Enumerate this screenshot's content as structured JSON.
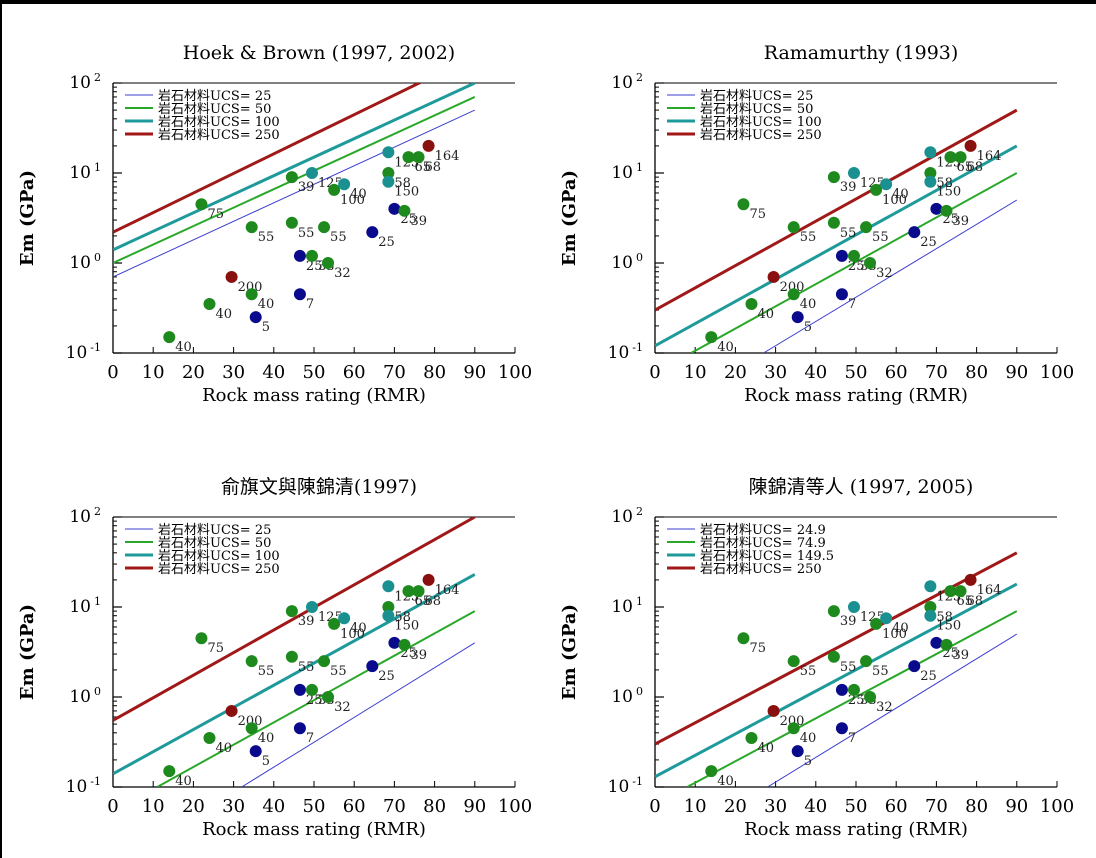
{
  "colors": {
    "ucs25": "#3f3fd0",
    "ucs50": "#2aa82a",
    "ucs100": "#1f9a9a",
    "ucs250": "#a01818",
    "pt_blue": "#0a0a8c",
    "pt_green": "#1e8a1e",
    "pt_teal": "#1a9090",
    "pt_red": "#8a1010"
  },
  "chart_data": [
    {
      "type": "scatter",
      "title": "Hoek & Brown (1997, 2002)",
      "xlabel": "Rock mass rating (RMR)",
      "ylabel": "Em (GPa)",
      "xlim": [
        0,
        100
      ],
      "ylim": [
        0.1,
        100
      ],
      "yscale": "log",
      "xticks": [
        "0",
        "10",
        "20",
        "30",
        "40",
        "50",
        "60",
        "70",
        "80",
        "90",
        "100"
      ],
      "yticks": [
        {
          "base": "10",
          "exp": "-1"
        },
        {
          "base": "10",
          "exp": "0"
        },
        {
          "base": "10",
          "exp": "1"
        },
        {
          "base": "10",
          "exp": "2"
        }
      ],
      "legend_position": "top-left",
      "series": [
        {
          "name": "岩石材料UCS= 25",
          "color": "ucs25",
          "width": 1,
          "line": [
            [
              0,
              0.7
            ],
            [
              90,
              50
            ]
          ]
        },
        {
          "name": "岩石材料UCS= 50",
          "color": "ucs50",
          "width": 2,
          "line": [
            [
              0,
              1.0
            ],
            [
              90,
              70
            ]
          ]
        },
        {
          "name": "岩石材料UCS= 100",
          "color": "ucs100",
          "width": 3,
          "line": [
            [
              0,
              1.4
            ],
            [
              90,
              100
            ]
          ]
        },
        {
          "name": "岩石材料UCS= 250",
          "color": "ucs250",
          "width": 3,
          "line": [
            [
              0,
              2.2
            ],
            [
              90,
              200
            ]
          ]
        }
      ],
      "points": [
        {
          "x": 14,
          "y": 0.15,
          "label": "40",
          "c": "pt_green"
        },
        {
          "x": 22,
          "y": 4.5,
          "label": "75",
          "c": "pt_green"
        },
        {
          "x": 24,
          "y": 0.35,
          "label": "40",
          "c": "pt_green"
        },
        {
          "x": 29.5,
          "y": 0.7,
          "label": "200",
          "c": "pt_red"
        },
        {
          "x": 34.5,
          "y": 2.5,
          "label": "55",
          "c": "pt_green"
        },
        {
          "x": 34.5,
          "y": 0.45,
          "label": "40",
          "c": "pt_green"
        },
        {
          "x": 35.5,
          "y": 0.25,
          "label": "5",
          "c": "pt_blue"
        },
        {
          "x": 44.5,
          "y": 9,
          "label": "39",
          "c": "pt_green"
        },
        {
          "x": 44.5,
          "y": 2.8,
          "label": "55",
          "c": "pt_green"
        },
        {
          "x": 46.5,
          "y": 1.2,
          "label": "25",
          "c": "pt_blue"
        },
        {
          "x": 46.5,
          "y": 0.45,
          "label": "7",
          "c": "pt_blue"
        },
        {
          "x": 49.5,
          "y": 10,
          "label": "125",
          "c": "pt_teal"
        },
        {
          "x": 49.5,
          "y": 1.2,
          "label": "33",
          "c": "pt_green"
        },
        {
          "x": 52.5,
          "y": 2.5,
          "label": "55",
          "c": "pt_green"
        },
        {
          "x": 53.5,
          "y": 1.0,
          "label": "32",
          "c": "pt_green"
        },
        {
          "x": 55,
          "y": 6.5,
          "label": "100",
          "c": "pt_green"
        },
        {
          "x": 57.5,
          "y": 7.5,
          "label": "40",
          "c": "pt_teal"
        },
        {
          "x": 64.5,
          "y": 2.2,
          "label": "25",
          "c": "pt_blue"
        },
        {
          "x": 68.5,
          "y": 17,
          "label": "125",
          "c": "pt_teal"
        },
        {
          "x": 68.5,
          "y": 10,
          "label": "58",
          "c": "pt_green"
        },
        {
          "x": 68.5,
          "y": 8,
          "label": "150",
          "c": "pt_teal"
        },
        {
          "x": 70,
          "y": 4,
          "label": "25",
          "c": "pt_blue"
        },
        {
          "x": 72.5,
          "y": 3.8,
          "label": "39",
          "c": "pt_green"
        },
        {
          "x": 73.5,
          "y": 15,
          "label": "65",
          "c": "pt_green"
        },
        {
          "x": 76,
          "y": 15,
          "label": "68",
          "c": "pt_green"
        },
        {
          "x": 78.5,
          "y": 20,
          "label": "164",
          "c": "pt_red"
        }
      ]
    },
    {
      "type": "scatter",
      "title": "Ramamurthy (1993)",
      "xlabel": "Rock mass rating (RMR)",
      "ylabel": "Em (GPa)",
      "xlim": [
        0,
        100
      ],
      "ylim": [
        0.1,
        100
      ],
      "yscale": "log",
      "xticks": [
        "0",
        "10",
        "20",
        "30",
        "40",
        "50",
        "60",
        "70",
        "80",
        "90",
        "100"
      ],
      "yticks": [
        {
          "base": "10",
          "exp": "-1"
        },
        {
          "base": "10",
          "exp": "0"
        },
        {
          "base": "10",
          "exp": "1"
        },
        {
          "base": "10",
          "exp": "2"
        }
      ],
      "legend_position": "top-left",
      "series": [
        {
          "name": "岩石材料UCS= 25",
          "color": "ucs25",
          "width": 1,
          "line": [
            [
              27,
              0.1
            ],
            [
              90,
              5
            ]
          ]
        },
        {
          "name": "岩石材料UCS= 50",
          "color": "ucs50",
          "width": 2,
          "line": [
            [
              9,
              0.1
            ],
            [
              90,
              10
            ]
          ]
        },
        {
          "name": "岩石材料UCS= 100",
          "color": "ucs100",
          "width": 3,
          "line": [
            [
              0,
              0.12
            ],
            [
              90,
              20
            ]
          ]
        },
        {
          "name": "岩石材料UCS= 250",
          "color": "ucs250",
          "width": 3,
          "line": [
            [
              0,
              0.3
            ],
            [
              90,
              50
            ]
          ]
        }
      ],
      "points": [
        {
          "x": 14,
          "y": 0.15,
          "label": "40",
          "c": "pt_green"
        },
        {
          "x": 22,
          "y": 4.5,
          "label": "75",
          "c": "pt_green"
        },
        {
          "x": 24,
          "y": 0.35,
          "label": "40",
          "c": "pt_green"
        },
        {
          "x": 29.5,
          "y": 0.7,
          "label": "200",
          "c": "pt_red"
        },
        {
          "x": 34.5,
          "y": 2.5,
          "label": "55",
          "c": "pt_green"
        },
        {
          "x": 34.5,
          "y": 0.45,
          "label": "40",
          "c": "pt_green"
        },
        {
          "x": 35.5,
          "y": 0.25,
          "label": "5",
          "c": "pt_blue"
        },
        {
          "x": 44.5,
          "y": 9,
          "label": "39",
          "c": "pt_green"
        },
        {
          "x": 44.5,
          "y": 2.8,
          "label": "55",
          "c": "pt_green"
        },
        {
          "x": 46.5,
          "y": 1.2,
          "label": "25",
          "c": "pt_blue"
        },
        {
          "x": 46.5,
          "y": 0.45,
          "label": "7",
          "c": "pt_blue"
        },
        {
          "x": 49.5,
          "y": 10,
          "label": "125",
          "c": "pt_teal"
        },
        {
          "x": 49.5,
          "y": 1.2,
          "label": "33",
          "c": "pt_green"
        },
        {
          "x": 52.5,
          "y": 2.5,
          "label": "55",
          "c": "pt_green"
        },
        {
          "x": 53.5,
          "y": 1.0,
          "label": "32",
          "c": "pt_green"
        },
        {
          "x": 55,
          "y": 6.5,
          "label": "100",
          "c": "pt_green"
        },
        {
          "x": 57.5,
          "y": 7.5,
          "label": "40",
          "c": "pt_teal"
        },
        {
          "x": 64.5,
          "y": 2.2,
          "label": "25",
          "c": "pt_blue"
        },
        {
          "x": 68.5,
          "y": 17,
          "label": "125",
          "c": "pt_teal"
        },
        {
          "x": 68.5,
          "y": 10,
          "label": "58",
          "c": "pt_green"
        },
        {
          "x": 68.5,
          "y": 8,
          "label": "150",
          "c": "pt_teal"
        },
        {
          "x": 70,
          "y": 4,
          "label": "25",
          "c": "pt_blue"
        },
        {
          "x": 72.5,
          "y": 3.8,
          "label": "39",
          "c": "pt_green"
        },
        {
          "x": 73.5,
          "y": 15,
          "label": "65",
          "c": "pt_green"
        },
        {
          "x": 76,
          "y": 15,
          "label": "68",
          "c": "pt_green"
        },
        {
          "x": 78.5,
          "y": 20,
          "label": "164",
          "c": "pt_red"
        }
      ]
    },
    {
      "type": "scatter",
      "title": "俞旗文與陳錦清(1997)",
      "xlabel": "Rock mass rating (RMR)",
      "ylabel": "Em (GPa)",
      "xlim": [
        0,
        100
      ],
      "ylim": [
        0.1,
        100
      ],
      "yscale": "log",
      "xticks": [
        "0",
        "10",
        "20",
        "30",
        "40",
        "50",
        "60",
        "70",
        "80",
        "90",
        "100"
      ],
      "yticks": [
        {
          "base": "10",
          "exp": "-1"
        },
        {
          "base": "10",
          "exp": "0"
        },
        {
          "base": "10",
          "exp": "1"
        },
        {
          "base": "10",
          "exp": "2"
        }
      ],
      "legend_position": "top-left",
      "series": [
        {
          "name": "岩石材料UCS= 25",
          "color": "ucs25",
          "width": 1,
          "line": [
            [
              32,
              0.1
            ],
            [
              90,
              4
            ]
          ]
        },
        {
          "name": "岩石材料UCS= 50",
          "color": "ucs50",
          "width": 2,
          "line": [
            [
              11,
              0.1
            ],
            [
              90,
              9
            ]
          ]
        },
        {
          "name": "岩石材料UCS= 100",
          "color": "ucs100",
          "width": 3,
          "line": [
            [
              0,
              0.14
            ],
            [
              90,
              23
            ]
          ]
        },
        {
          "name": "岩石材料UCS= 250",
          "color": "ucs250",
          "width": 3,
          "line": [
            [
              0,
              0.55
            ],
            [
              90,
              100
            ]
          ]
        }
      ],
      "points": [
        {
          "x": 14,
          "y": 0.15,
          "label": "40",
          "c": "pt_green"
        },
        {
          "x": 22,
          "y": 4.5,
          "label": "75",
          "c": "pt_green"
        },
        {
          "x": 24,
          "y": 0.35,
          "label": "40",
          "c": "pt_green"
        },
        {
          "x": 29.5,
          "y": 0.7,
          "label": "200",
          "c": "pt_red"
        },
        {
          "x": 34.5,
          "y": 2.5,
          "label": "55",
          "c": "pt_green"
        },
        {
          "x": 34.5,
          "y": 0.45,
          "label": "40",
          "c": "pt_green"
        },
        {
          "x": 35.5,
          "y": 0.25,
          "label": "5",
          "c": "pt_blue"
        },
        {
          "x": 44.5,
          "y": 9,
          "label": "39",
          "c": "pt_green"
        },
        {
          "x": 44.5,
          "y": 2.8,
          "label": "55",
          "c": "pt_green"
        },
        {
          "x": 46.5,
          "y": 1.2,
          "label": "25",
          "c": "pt_blue"
        },
        {
          "x": 46.5,
          "y": 0.45,
          "label": "7",
          "c": "pt_blue"
        },
        {
          "x": 49.5,
          "y": 10,
          "label": "125",
          "c": "pt_teal"
        },
        {
          "x": 49.5,
          "y": 1.2,
          "label": "33",
          "c": "pt_green"
        },
        {
          "x": 52.5,
          "y": 2.5,
          "label": "55",
          "c": "pt_green"
        },
        {
          "x": 53.5,
          "y": 1.0,
          "label": "32",
          "c": "pt_green"
        },
        {
          "x": 55,
          "y": 6.5,
          "label": "100",
          "c": "pt_green"
        },
        {
          "x": 57.5,
          "y": 7.5,
          "label": "40",
          "c": "pt_teal"
        },
        {
          "x": 64.5,
          "y": 2.2,
          "label": "25",
          "c": "pt_blue"
        },
        {
          "x": 68.5,
          "y": 17,
          "label": "125",
          "c": "pt_teal"
        },
        {
          "x": 68.5,
          "y": 10,
          "label": "58",
          "c": "pt_green"
        },
        {
          "x": 68.5,
          "y": 8,
          "label": "150",
          "c": "pt_teal"
        },
        {
          "x": 70,
          "y": 4,
          "label": "25",
          "c": "pt_blue"
        },
        {
          "x": 72.5,
          "y": 3.8,
          "label": "39",
          "c": "pt_green"
        },
        {
          "x": 73.5,
          "y": 15,
          "label": "65",
          "c": "pt_green"
        },
        {
          "x": 76,
          "y": 15,
          "label": "68",
          "c": "pt_green"
        },
        {
          "x": 78.5,
          "y": 20,
          "label": "164",
          "c": "pt_red"
        }
      ]
    },
    {
      "type": "scatter",
      "title": "陳錦清等人 (1997, 2005)",
      "xlabel": "Rock mass rating (RMR)",
      "ylabel": "Em (GPa)",
      "xlim": [
        0,
        100
      ],
      "ylim": [
        0.1,
        100
      ],
      "yscale": "log",
      "xticks": [
        "0",
        "10",
        "20",
        "30",
        "40",
        "50",
        "60",
        "70",
        "80",
        "90",
        "100"
      ],
      "yticks": [
        {
          "base": "10",
          "exp": "-1"
        },
        {
          "base": "10",
          "exp": "0"
        },
        {
          "base": "10",
          "exp": "1"
        },
        {
          "base": "10",
          "exp": "2"
        }
      ],
      "legend_position": "top-left",
      "series": [
        {
          "name": "岩石材料UCS= 24.9",
          "color": "ucs25",
          "width": 1,
          "line": [
            [
              28,
              0.1
            ],
            [
              90,
              5
            ]
          ]
        },
        {
          "name": "岩石材料UCS= 74.9",
          "color": "ucs50",
          "width": 2,
          "line": [
            [
              8,
              0.1
            ],
            [
              90,
              9
            ]
          ]
        },
        {
          "name": "岩石材料UCS= 149.5",
          "color": "ucs100",
          "width": 3,
          "line": [
            [
              0,
              0.13
            ],
            [
              90,
              18
            ]
          ]
        },
        {
          "name": "岩石材料UCS= 250",
          "color": "ucs250",
          "width": 3,
          "line": [
            [
              0,
              0.3
            ],
            [
              90,
              40
            ]
          ]
        }
      ],
      "points": [
        {
          "x": 14,
          "y": 0.15,
          "label": "40",
          "c": "pt_green"
        },
        {
          "x": 22,
          "y": 4.5,
          "label": "75",
          "c": "pt_green"
        },
        {
          "x": 24,
          "y": 0.35,
          "label": "40",
          "c": "pt_green"
        },
        {
          "x": 29.5,
          "y": 0.7,
          "label": "200",
          "c": "pt_red"
        },
        {
          "x": 34.5,
          "y": 2.5,
          "label": "55",
          "c": "pt_green"
        },
        {
          "x": 34.5,
          "y": 0.45,
          "label": "40",
          "c": "pt_green"
        },
        {
          "x": 35.5,
          "y": 0.25,
          "label": "5",
          "c": "pt_blue"
        },
        {
          "x": 44.5,
          "y": 9,
          "label": "39",
          "c": "pt_green"
        },
        {
          "x": 44.5,
          "y": 2.8,
          "label": "55",
          "c": "pt_green"
        },
        {
          "x": 46.5,
          "y": 1.2,
          "label": "25",
          "c": "pt_blue"
        },
        {
          "x": 46.5,
          "y": 0.45,
          "label": "7",
          "c": "pt_blue"
        },
        {
          "x": 49.5,
          "y": 10,
          "label": "125",
          "c": "pt_teal"
        },
        {
          "x": 49.5,
          "y": 1.2,
          "label": "33",
          "c": "pt_green"
        },
        {
          "x": 52.5,
          "y": 2.5,
          "label": "55",
          "c": "pt_green"
        },
        {
          "x": 53.5,
          "y": 1.0,
          "label": "32",
          "c": "pt_green"
        },
        {
          "x": 55,
          "y": 6.5,
          "label": "100",
          "c": "pt_green"
        },
        {
          "x": 57.5,
          "y": 7.5,
          "label": "40",
          "c": "pt_teal"
        },
        {
          "x": 64.5,
          "y": 2.2,
          "label": "25",
          "c": "pt_blue"
        },
        {
          "x": 68.5,
          "y": 17,
          "label": "125",
          "c": "pt_teal"
        },
        {
          "x": 68.5,
          "y": 10,
          "label": "58",
          "c": "pt_green"
        },
        {
          "x": 68.5,
          "y": 8,
          "label": "150",
          "c": "pt_teal"
        },
        {
          "x": 70,
          "y": 4,
          "label": "25",
          "c": "pt_blue"
        },
        {
          "x": 72.5,
          "y": 3.8,
          "label": "39",
          "c": "pt_green"
        },
        {
          "x": 73.5,
          "y": 15,
          "label": "65",
          "c": "pt_green"
        },
        {
          "x": 76,
          "y": 15,
          "label": "68",
          "c": "pt_green"
        },
        {
          "x": 78.5,
          "y": 20,
          "label": "164",
          "c": "pt_red"
        }
      ]
    }
  ]
}
